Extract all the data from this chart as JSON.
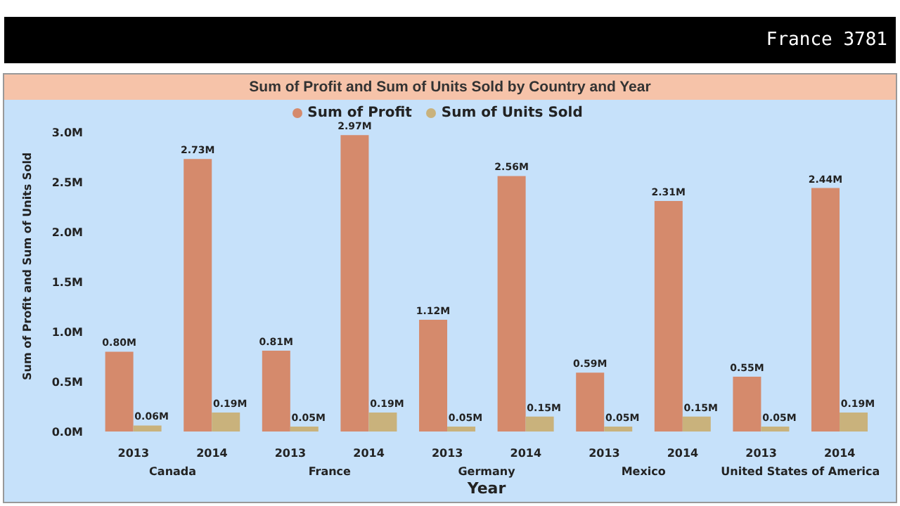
{
  "chart_data": {
    "type": "bar",
    "title": "Sum of Profit and Sum of Units Sold by Country and Year",
    "xlabel": "Year",
    "ylabel": "Sum of Profit and Sum of Units Sold",
    "categories": [
      "2013",
      "2014",
      "2013",
      "2014",
      "2013",
      "2014",
      "2013",
      "2014",
      "2013",
      "2014"
    ],
    "series": [
      {
        "name": "Sum of Profit",
        "color": "#d58a6c",
        "values": [
          0.8,
          2.73,
          0.81,
          2.97,
          1.12,
          2.56,
          0.59,
          2.31,
          0.55,
          2.44
        ],
        "value_labels": [
          "0.80M",
          "2.73M",
          "0.81M",
          "2.97M",
          "1.12M",
          "2.56M",
          "0.59M",
          "2.31M",
          "0.55M",
          "2.44M"
        ]
      },
      {
        "name": "Sum of Units Sold",
        "color": "#c9b27c",
        "values": [
          0.06,
          0.19,
          0.05,
          0.19,
          0.05,
          0.15,
          0.05,
          0.15,
          0.05,
          0.19
        ],
        "value_labels": [
          "0.06M",
          "0.19M",
          "0.05M",
          "0.19M",
          "0.05M",
          "0.15M",
          "0.05M",
          "0.15M",
          "0.05M",
          "0.19M"
        ]
      }
    ],
    "ylim": [
      0,
      3
    ],
    "yticks": [
      {
        "value": 0,
        "label": "0.0M"
      },
      {
        "value": 0.5,
        "label": "0.5M"
      },
      {
        "value": 1,
        "label": "1.0M"
      },
      {
        "value": 1.5,
        "label": "1.5M"
      },
      {
        "value": 2,
        "label": "2.0M"
      },
      {
        "value": 2.5,
        "label": "2.5M"
      },
      {
        "value": 3,
        "label": "3.0M"
      }
    ],
    "grid": false,
    "legend": "top",
    "annotations": [
      "France 3781",
      "Canada",
      "France",
      "Germany",
      "Mexico",
      "United States of America"
    ]
  }
}
